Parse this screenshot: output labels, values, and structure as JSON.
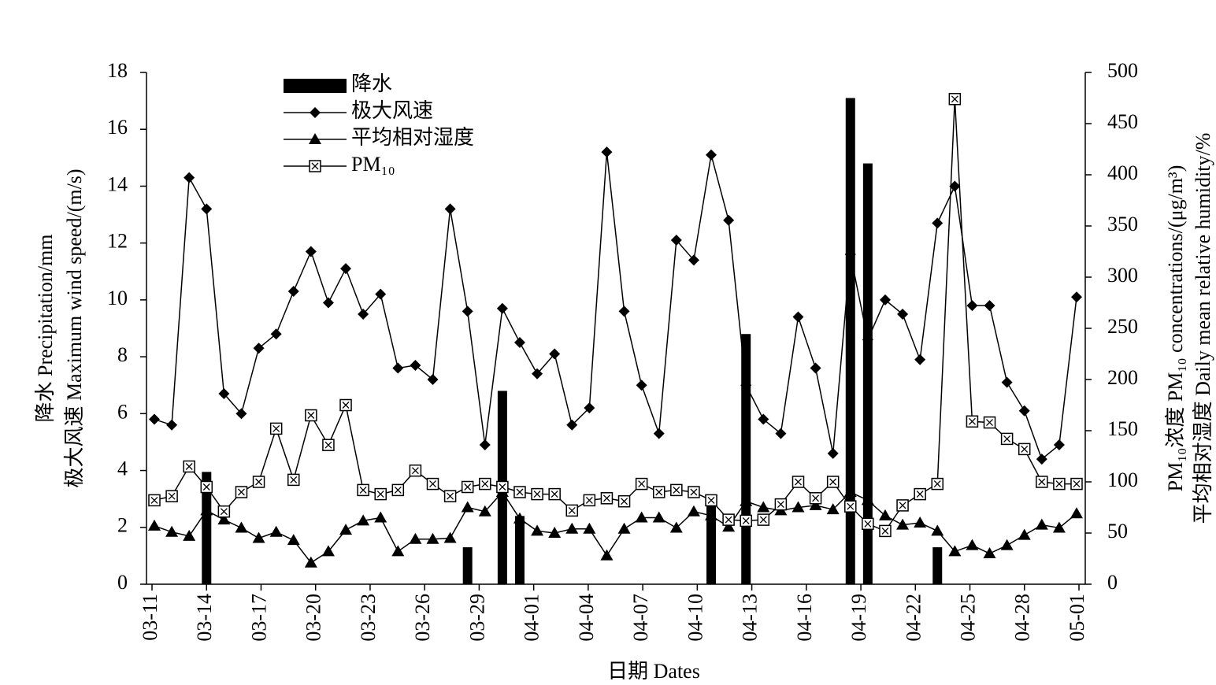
{
  "chart_data": {
    "type": "combo",
    "xlabel": "日期 Dates",
    "ylabel": [
      "降水 Precipitation/mm",
      "极大风速 Maximum wind speed/(m/s)"
    ],
    "y2label": [
      "PM₁₀浓度 PM₁₀ concentrations/(μg/m³)",
      "平均相对湿度 Daily mean relative humidity/%"
    ],
    "xtick_labels": [
      "03-11",
      "03-14",
      "03-17",
      "03-20",
      "03-23",
      "03-26",
      "03-29",
      "04-01",
      "04-04",
      "04-07",
      "04-10",
      "04-13",
      "04-16",
      "04-19",
      "04-22",
      "04-25",
      "04-28",
      "05-01"
    ],
    "ylim": [
      0,
      18
    ],
    "yticks": [
      0,
      2,
      4,
      6,
      8,
      10,
      12,
      14,
      16,
      18
    ],
    "y2lim": [
      0,
      500
    ],
    "y2ticks": [
      0,
      50,
      100,
      150,
      200,
      250,
      300,
      350,
      400,
      450,
      500
    ],
    "grid": false,
    "legend": "upper left",
    "series": [
      {
        "name": "降水",
        "type": "bar",
        "color": "#000000",
        "values": [
          0,
          0,
          0,
          3.95,
          0,
          0,
          0,
          0,
          0,
          0,
          0,
          0,
          0,
          0,
          0,
          0,
          0,
          0,
          1.3,
          0,
          6.8,
          2.4,
          0,
          0,
          0,
          0,
          0,
          0,
          0,
          0,
          0,
          0,
          2.9,
          0,
          8.8,
          0,
          0,
          0,
          0,
          0,
          17.1,
          14.8,
          0,
          0,
          0,
          1.3,
          0,
          0,
          0,
          0,
          0,
          0,
          0,
          0
        ]
      },
      {
        "name": "极大风速",
        "type": "line",
        "marker": "diamond",
        "color": "#000000",
        "values": [
          5.8,
          5.6,
          14.3,
          13.2,
          6.7,
          6.0,
          8.3,
          8.8,
          10.3,
          11.7,
          9.9,
          11.1,
          9.5,
          10.2,
          7.6,
          7.7,
          7.2,
          13.2,
          9.6,
          4.9,
          9.7,
          8.5,
          7.4,
          8.1,
          5.6,
          6.2,
          15.2,
          9.6,
          7.0,
          5.3,
          12.1,
          11.4,
          15.1,
          12.8,
          7.0,
          5.8,
          5.3,
          9.4,
          7.6,
          4.6,
          11.6,
          8.6,
          10.0,
          9.5,
          7.9,
          12.7,
          14.0,
          9.8,
          9.8,
          7.1,
          6.1,
          4.4,
          4.9,
          10.1
        ]
      },
      {
        "name": "平均相对湿度",
        "type": "line",
        "marker": "triangle",
        "color": "#000000",
        "axis": "y2",
        "values": [
          57,
          51,
          47,
          72,
          63,
          55,
          45,
          51,
          43,
          21,
          32,
          53,
          62,
          65,
          32,
          44,
          44,
          45,
          75,
          71,
          90,
          64,
          52,
          50,
          54,
          54,
          28,
          54,
          65,
          65,
          55,
          71,
          67,
          56,
          81,
          75,
          72,
          75,
          77,
          73,
          90,
          82,
          67,
          58,
          60,
          52,
          32,
          38,
          30,
          38,
          48,
          58,
          55,
          69
        ]
      },
      {
        "name": "PM₁₀",
        "type": "line",
        "marker": "square",
        "color": "#000000",
        "axis": "y2",
        "values": [
          82,
          86,
          115,
          95,
          71,
          90,
          100,
          152,
          102,
          165,
          136,
          175,
          92,
          88,
          92,
          111,
          98,
          86,
          95,
          98,
          95,
          90,
          88,
          88,
          72,
          82,
          84,
          81,
          98,
          90,
          92,
          90,
          82,
          63,
          62,
          63,
          78,
          100,
          84,
          100,
          76,
          59,
          52,
          77,
          88,
          98,
          474,
          159,
          158,
          142,
          132,
          100,
          98,
          98
        ]
      }
    ]
  }
}
